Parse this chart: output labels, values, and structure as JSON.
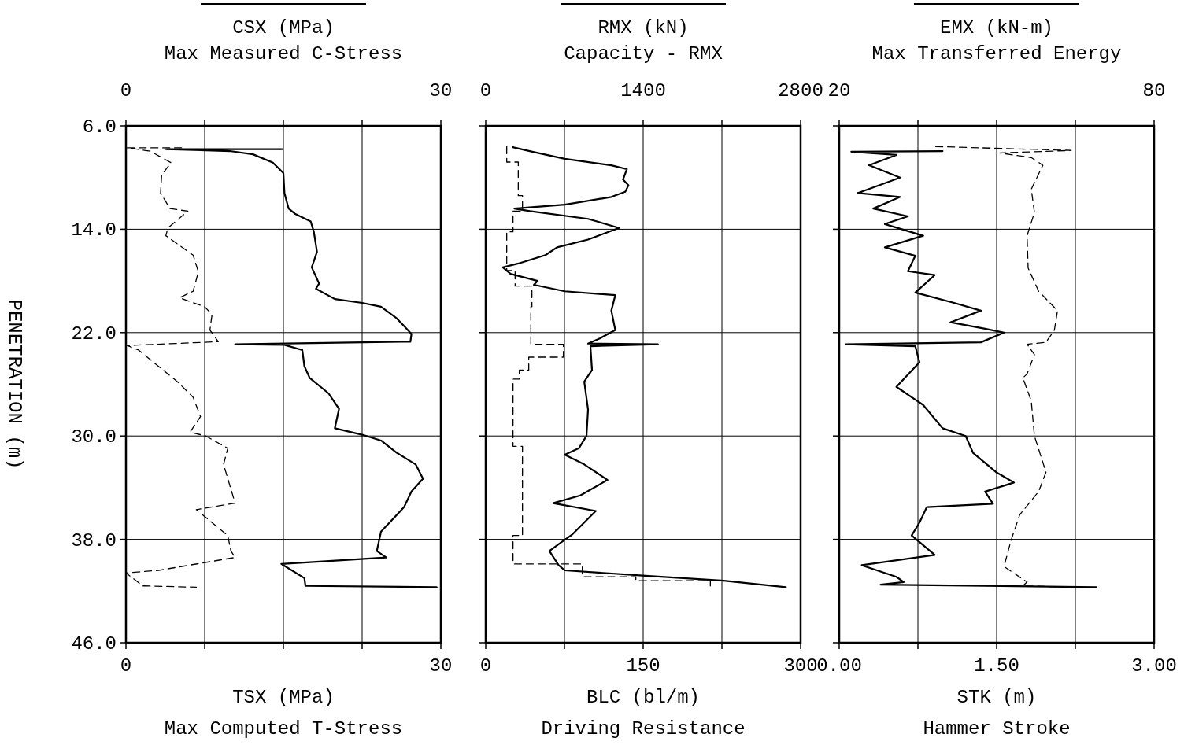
{
  "chart_data": [
    {
      "type": "line",
      "x2label": "CSX (MPa)\nMax Measured C-Stress",
      "xlabel": "TSX (MPa)\nMax Computed T-Stress",
      "ylabel": "PENETRATION (m)",
      "ylim": [
        46,
        6
      ],
      "yticks": [
        {
          "value": 6,
          "label": "6.0"
        },
        {
          "value": 14,
          "label": "14.0"
        },
        {
          "value": 22,
          "label": "22.0"
        },
        {
          "value": 30,
          "label": "30.0"
        },
        {
          "value": 38,
          "label": "38.0"
        },
        {
          "value": 46,
          "label": "46.0"
        }
      ],
      "xlim": [
        0,
        30
      ],
      "xticks": [
        0,
        {
          "value": 7.5,
          "label": null
        },
        {
          "value": 15,
          "label": null
        },
        {
          "value": 22.5,
          "label": null
        },
        30
      ],
      "x2lim": [
        0,
        30
      ],
      "x2ticks": [
        0,
        {
          "value": 7.5,
          "label": null
        },
        {
          "value": 15,
          "label": null
        },
        {
          "value": 22.5,
          "label": null
        },
        30
      ],
      "grid": true,
      "series": [
        {
          "axis": "x2",
          "color": "#000000",
          "line_style": "solid",
          "x": [
            14.9,
            3.8,
            9.9,
            12.1,
            14.0,
            15.0,
            15.1,
            15.5,
            16.1,
            17.6,
            17.9,
            18.2,
            17.7,
            18.4,
            18.1,
            19.9,
            22.5,
            24.3,
            25.8,
            26.5,
            27.2,
            27.1,
            10.4,
            15.1,
            16.8,
            17.0,
            17.5,
            19.3,
            20.3,
            19.9,
            22.5,
            24.3,
            25.8,
            27.6,
            28.3,
            27.2,
            26.5,
            24.3,
            23.9,
            24.8,
            14.8,
            17.0,
            17.1,
            29.6
          ],
          "values": [
            7.8,
            7.8,
            7.95,
            8.2,
            8.85,
            9.65,
            11.2,
            12.4,
            12.8,
            13.4,
            14.2,
            15.75,
            16.95,
            18.2,
            18.6,
            19.4,
            19.7,
            20.0,
            20.9,
            21.5,
            22.1,
            22.7,
            22.9,
            22.95,
            23.35,
            24.6,
            25.5,
            26.7,
            27.9,
            29.4,
            29.9,
            30.35,
            31.3,
            32.2,
            33.3,
            34.3,
            35.5,
            37.4,
            38.9,
            39.4,
            39.9,
            41.0,
            41.6,
            41.7
          ]
        },
        {
          "color": "#000000",
          "line_style": "dashed",
          "x": [
            5.3,
            0.1,
            2.3,
            4.3,
            3.4,
            3.3,
            4.2,
            5.9,
            4.0,
            3.8,
            6.4,
            6.9,
            6.4,
            5.1,
            7.5,
            8.2,
            8.0,
            8.8,
            0.1,
            1.2,
            4.9,
            6.4,
            7.1,
            6.1,
            7.6,
            9.7,
            9.3,
            10.4,
            6.7,
            9.7,
            10.0,
            10.4,
            3.1,
            0.0,
            1.6,
            6.7
          ],
          "values": [
            7.7,
            7.7,
            7.95,
            8.85,
            9.8,
            11.2,
            12.4,
            12.6,
            13.9,
            14.5,
            16.0,
            17.3,
            18.8,
            19.3,
            20.0,
            20.6,
            21.8,
            22.7,
            23.0,
            23.35,
            25.8,
            27.0,
            28.5,
            29.7,
            30.0,
            30.95,
            32.2,
            35.2,
            35.7,
            37.7,
            38.9,
            39.4,
            40.4,
            40.6,
            41.6,
            41.7
          ]
        }
      ]
    },
    {
      "type": "line",
      "x2label": "RMX (kN)\nCapacity - RMX",
      "xlabel": "BLC (bl/m)\nDriving Resistance",
      "tick_labels": "x",
      "ylim": [
        46,
        6
      ],
      "yticks": [
        {
          "value": 6,
          "label": null
        },
        {
          "value": 14,
          "label": null
        },
        {
          "value": 22,
          "label": null
        },
        {
          "value": 30,
          "label": null
        },
        {
          "value": 38,
          "label": null
        },
        {
          "value": 46,
          "label": null
        }
      ],
      "xlim": [
        0,
        300
      ],
      "xticks": [
        0,
        {
          "value": 75,
          "label": null
        },
        150,
        {
          "value": 225,
          "label": null
        },
        300
      ],
      "x2lim": [
        0,
        2800
      ],
      "x2ticks": [
        0,
        {
          "value": 700,
          "label": null
        },
        1400,
        {
          "value": 2100,
          "label": null
        },
        2800
      ],
      "grid": true,
      "series": [
        {
          "axis": "x2",
          "color": "#000000",
          "line_style": "solid",
          "x": [
            241,
            414,
            703,
            1117,
            1255,
            1221,
            1269,
            1241,
            1117,
            703,
            255,
            393,
            910,
            1186,
            910,
            634,
            531,
            290,
            152,
            221,
            462,
            428,
            703,
            1152,
            1117,
            1152,
            1014,
            910,
            1531,
            931,
            945,
            876,
            910,
            896,
            828,
            703,
            876,
            1083,
            841,
            600,
            979,
            772,
            669,
            566,
            648,
            703,
            1393,
            2117,
            2669
          ],
          "values": [
            7.65,
            8.0,
            8.55,
            9.05,
            9.35,
            10.15,
            10.6,
            11.1,
            11.5,
            12.1,
            12.4,
            12.6,
            13.2,
            13.9,
            14.8,
            15.4,
            16.0,
            16.65,
            16.95,
            17.45,
            18.0,
            18.3,
            18.8,
            19.1,
            20.3,
            21.8,
            22.45,
            22.85,
            22.9,
            23.05,
            24.9,
            25.8,
            27.95,
            30.0,
            30.95,
            31.45,
            32.2,
            33.4,
            34.6,
            35.2,
            35.8,
            37.6,
            38.25,
            38.9,
            40.0,
            40.4,
            40.8,
            41.2,
            41.7
          ]
        },
        {
          "color": "#000000",
          "line_style": "dashed",
          "x": [
            20,
            20,
            31,
            31,
            35,
            35,
            26,
            26,
            20,
            20,
            28,
            28,
            44,
            44,
            43,
            43,
            74,
            74,
            41,
            41,
            32,
            32,
            26,
            26,
            35,
            35,
            26,
            26,
            92,
            92,
            143,
            143,
            214,
            214
          ],
          "values": [
            7.6,
            8.8,
            8.8,
            11.4,
            11.4,
            12.6,
            12.6,
            14.2,
            14.2,
            17.2,
            17.2,
            18.4,
            18.4,
            20.0,
            20.0,
            22.9,
            22.9,
            23.9,
            23.9,
            24.9,
            24.9,
            25.6,
            25.6,
            30.8,
            30.8,
            37.7,
            37.7,
            39.9,
            39.9,
            40.9,
            40.9,
            41.2,
            41.2,
            41.6
          ]
        }
      ]
    },
    {
      "type": "line",
      "x2label": "EMX (kN-m)\nMax Transferred Energy",
      "xlabel": "STK (m)\nHammer Stroke",
      "tick_labels": "x",
      "ylim": [
        46,
        6
      ],
      "yticks": [
        {
          "value": 6,
          "label": null
        },
        {
          "value": 14,
          "label": null
        },
        {
          "value": 22,
          "label": null
        },
        {
          "value": 30,
          "label": null
        },
        {
          "value": 38,
          "label": null
        },
        {
          "value": 46,
          "label": null
        }
      ],
      "xlim": [
        0,
        3
      ],
      "xticks": [
        {
          "value": 0,
          "label": "0.00"
        },
        {
          "value": 0.75,
          "label": null
        },
        {
          "value": 1.5,
          "label": "1.50"
        },
        {
          "value": 2.25,
          "label": null
        },
        {
          "value": 3,
          "label": "3.00"
        }
      ],
      "x2lim": [
        20,
        80
      ],
      "x2ticks": [
        20,
        {
          "value": 35,
          "label": null
        },
        {
          "value": 50,
          "label": null
        },
        {
          "value": 65,
          "label": null
        },
        80
      ],
      "grid": true,
      "series": [
        {
          "axis": "x2",
          "color": "#000000",
          "line_style": "solid",
          "x": [
            39.7,
            22.3,
            30.9,
            25.7,
            31.6,
            23.5,
            31.6,
            26.5,
            33.1,
            28.7,
            36.0,
            28.7,
            34.5,
            33.1,
            38.2,
            34.5,
            41.9,
            47.0,
            41.2,
            47.8,
            51.4,
            47.0,
            21.3,
            34.5,
            35.3,
            30.9,
            36.0,
            39.7,
            44.1,
            45.5,
            49.9,
            53.3,
            47.8,
            49.3,
            36.7,
            35.3,
            33.8,
            38.2,
            24.3,
            30.9,
            32.3,
            27.9,
            69.0
          ],
          "values": [
            7.95,
            8.0,
            8.25,
            9.05,
            10.0,
            11.2,
            11.5,
            12.4,
            13.0,
            13.6,
            14.5,
            15.4,
            16.05,
            17.25,
            17.55,
            18.9,
            19.7,
            20.3,
            21.2,
            21.7,
            22.0,
            22.75,
            22.9,
            23.05,
            24.3,
            26.2,
            27.6,
            29.4,
            30.0,
            31.3,
            32.8,
            33.6,
            34.3,
            35.25,
            35.5,
            36.7,
            37.7,
            39.2,
            40.0,
            40.9,
            41.3,
            41.5,
            41.7
          ]
        },
        {
          "color": "#000000",
          "line_style": "dashed",
          "x": [
            0.92,
            2.21,
            1.53,
            1.83,
            1.94,
            1.83,
            1.86,
            1.79,
            1.8,
            1.9,
            2.08,
            2.05,
            1.97,
            1.79,
            1.86,
            1.79,
            1.75,
            1.83,
            1.86,
            1.97,
            1.9,
            1.72,
            1.64,
            1.57,
            1.79,
            1.75,
            2.22
          ],
          "values": [
            7.6,
            7.9,
            8.1,
            8.45,
            9.05,
            10.9,
            12.7,
            14.5,
            17.0,
            18.8,
            20.3,
            21.8,
            22.75,
            22.9,
            23.7,
            25.2,
            25.5,
            27.3,
            30.0,
            32.8,
            34.3,
            36.1,
            38.0,
            40.1,
            41.3,
            41.6,
            41.7
          ]
        }
      ]
    }
  ]
}
